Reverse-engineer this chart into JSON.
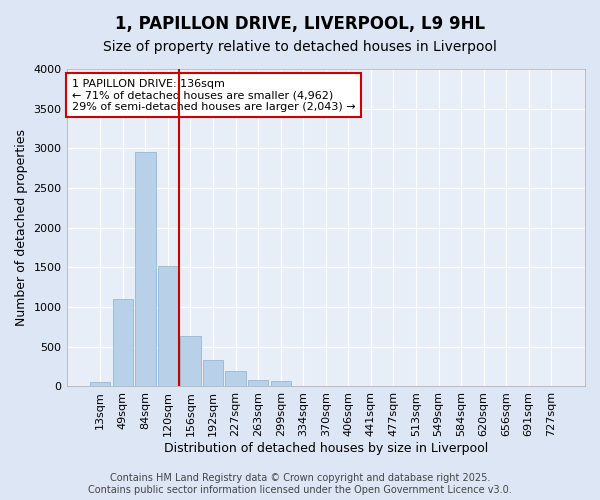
{
  "title": "1, PAPILLON DRIVE, LIVERPOOL, L9 9HL",
  "subtitle": "Size of property relative to detached houses in Liverpool",
  "xlabel": "Distribution of detached houses by size in Liverpool",
  "ylabel": "Number of detached properties",
  "bar_color": "#b8d0e8",
  "bar_edgecolor": "#8ab0d0",
  "background_color": "#e8eef8",
  "grid_color": "#ffffff",
  "categories": [
    "13sqm",
    "49sqm",
    "84sqm",
    "120sqm",
    "156sqm",
    "192sqm",
    "227sqm",
    "263sqm",
    "299sqm",
    "334sqm",
    "370sqm",
    "406sqm",
    "441sqm",
    "477sqm",
    "513sqm",
    "549sqm",
    "584sqm",
    "620sqm",
    "656sqm",
    "691sqm",
    "727sqm"
  ],
  "values": [
    50,
    1100,
    2960,
    1520,
    640,
    330,
    200,
    80,
    70,
    10,
    5,
    5,
    3,
    3,
    2,
    2,
    1,
    1,
    1,
    1,
    10
  ],
  "ylim": [
    0,
    4000
  ],
  "yticks": [
    0,
    500,
    1000,
    1500,
    2000,
    2500,
    3000,
    3500,
    4000
  ],
  "vline_x": 3.5,
  "vline_color": "#cc0000",
  "annotation_text": "1 PAPILLON DRIVE: 136sqm\n← 71% of detached houses are smaller (4,962)\n29% of semi-detached houses are larger (2,043) →",
  "annotation_box_color": "#ffffff",
  "annotation_box_edgecolor": "#cc0000",
  "footer_text": "Contains HM Land Registry data © Crown copyright and database right 2025.\nContains public sector information licensed under the Open Government Licence v3.0.",
  "title_fontsize": 12,
  "subtitle_fontsize": 10,
  "axis_label_fontsize": 9,
  "tick_fontsize": 8,
  "annotation_fontsize": 8,
  "footer_fontsize": 7
}
